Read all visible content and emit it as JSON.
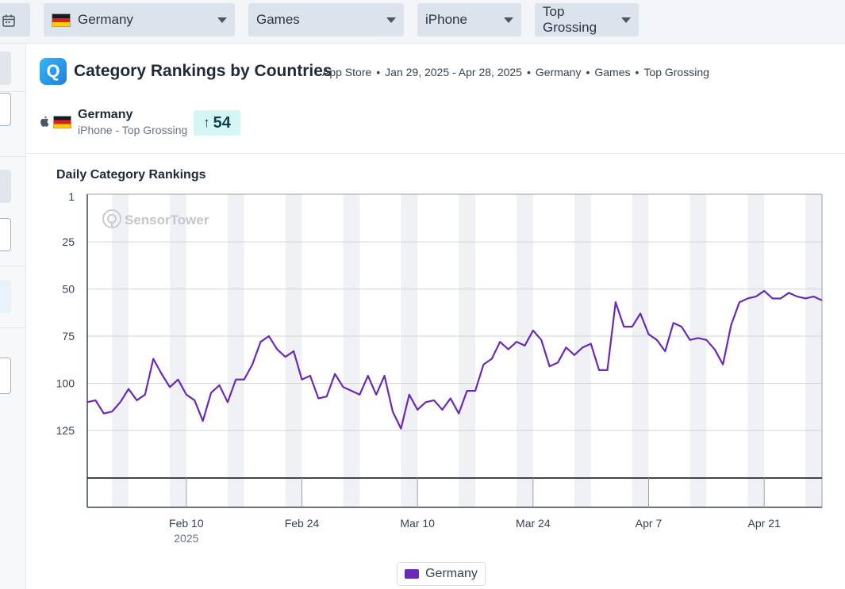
{
  "filters": {
    "country": "Germany",
    "category": "Games",
    "device": "iPhone",
    "chart_type": "Top Grossing"
  },
  "header": {
    "title": "Category Rankings by Countries",
    "store": "App Store",
    "date_range": "Jan 29, 2025 - Apr 28, 2025",
    "country": "Germany",
    "category": "Games",
    "chart": "Top Grossing",
    "app_icon_letter": "Q"
  },
  "summary": {
    "country": "Germany",
    "subtitle": "iPhone - Top Grossing",
    "rank_arrow": "↑",
    "rank": "54"
  },
  "watermark": "SensorTower",
  "colors": {
    "line": "#6a2ab8",
    "weekend_band": "#eff1f4",
    "grid": "#cfd4da",
    "badge_bg": "#d6f6f5"
  },
  "chart_data": {
    "type": "line",
    "title": "Daily Category Rankings",
    "ylabel": "",
    "xlabel": "",
    "y_inverted": true,
    "ylim": [
      1,
      150
    ],
    "yticks": [
      1,
      25,
      50,
      75,
      100,
      125
    ],
    "xticks": [
      {
        "date": "2025-02-10",
        "label": "Feb 10",
        "sublabel": "2025"
      },
      {
        "date": "2025-02-24",
        "label": "Feb 24",
        "sublabel": ""
      },
      {
        "date": "2025-03-10",
        "label": "Mar 10",
        "sublabel": ""
      },
      {
        "date": "2025-03-24",
        "label": "Mar 24",
        "sublabel": ""
      },
      {
        "date": "2025-04-07",
        "label": "Apr 7",
        "sublabel": ""
      },
      {
        "date": "2025-04-21",
        "label": "Apr 21",
        "sublabel": ""
      }
    ],
    "x_start": "2025-01-29",
    "x_end": "2025-04-28",
    "weekend_bands": true,
    "grid": true,
    "legend": "bottom-center",
    "series": [
      {
        "name": "Germany",
        "color": "#6a2ab8",
        "values": [
          110,
          109,
          116,
          115,
          110,
          103,
          109,
          106,
          87,
          95,
          102,
          98,
          106,
          109,
          120,
          105,
          101,
          110,
          98,
          98,
          90,
          78,
          75,
          82,
          86,
          83,
          98,
          96,
          108,
          107,
          95,
          102,
          104,
          106,
          96,
          106,
          96,
          115,
          124,
          106,
          114,
          110,
          109,
          114,
          108,
          116,
          104,
          104,
          90,
          87,
          78,
          82,
          78,
          80,
          72,
          77,
          91,
          89,
          81,
          85,
          81,
          79,
          93,
          93,
          57,
          70,
          70,
          63,
          74,
          77,
          83,
          68,
          70,
          77,
          76,
          77,
          82,
          90,
          69,
          57,
          55,
          54,
          51,
          55,
          55,
          52,
          54,
          55,
          54,
          56
        ]
      }
    ]
  }
}
